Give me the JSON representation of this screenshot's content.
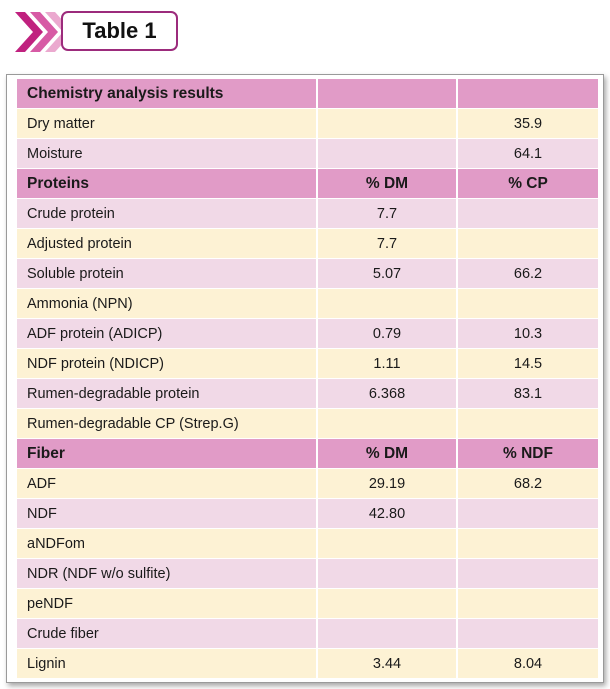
{
  "title": "Table 1",
  "colors": {
    "accent": "#9c2b7c",
    "header_row": "#e19bc7",
    "row_cream": "#fdf2d4",
    "row_pink": "#f1d9e7"
  },
  "rows": [
    {
      "kind": "header",
      "label": "Chemistry analysis results",
      "c2": "",
      "c3": ""
    },
    {
      "kind": "odd",
      "label": "Dry matter",
      "c2": "",
      "c3": "35.9"
    },
    {
      "kind": "even",
      "label": "Moisture",
      "c2": "",
      "c3": "64.1"
    },
    {
      "kind": "header",
      "label": "Proteins",
      "c2": "% DM",
      "c3": "% CP"
    },
    {
      "kind": "even",
      "label": "Crude protein",
      "c2": "7.7",
      "c3": ""
    },
    {
      "kind": "odd",
      "label": "Adjusted protein",
      "c2": "7.7",
      "c3": ""
    },
    {
      "kind": "even",
      "label": "Soluble protein",
      "c2": "5.07",
      "c3": "66.2"
    },
    {
      "kind": "odd",
      "label": "Ammonia (NPN)",
      "c2": "",
      "c3": ""
    },
    {
      "kind": "even",
      "label": "ADF protein (ADICP)",
      "c2": "0.79",
      "c3": "10.3"
    },
    {
      "kind": "odd",
      "label": "NDF protein (NDICP)",
      "c2": "1.11",
      "c3": "14.5"
    },
    {
      "kind": "even",
      "label": "Rumen-degradable protein",
      "c2": "6.368",
      "c3": "83.1"
    },
    {
      "kind": "odd",
      "label": "Rumen-degradable CP (Strep.G)",
      "c2": "",
      "c3": ""
    },
    {
      "kind": "header",
      "label": "Fiber",
      "c2": "% DM",
      "c3": "% NDF"
    },
    {
      "kind": "odd",
      "label": "ADF",
      "c2": "29.19",
      "c3": "68.2"
    },
    {
      "kind": "even",
      "label": "NDF",
      "c2": "42.80",
      "c3": ""
    },
    {
      "kind": "odd",
      "label": "aNDFom",
      "c2": "",
      "c3": ""
    },
    {
      "kind": "even",
      "label": "NDR (NDF w/o sulfite)",
      "c2": "",
      "c3": ""
    },
    {
      "kind": "odd",
      "label": "peNDF",
      "c2": "",
      "c3": ""
    },
    {
      "kind": "even",
      "label": "Crude fiber",
      "c2": "",
      "c3": ""
    },
    {
      "kind": "odd",
      "label": "Lignin",
      "c2": "3.44",
      "c3": "8.04"
    }
  ]
}
